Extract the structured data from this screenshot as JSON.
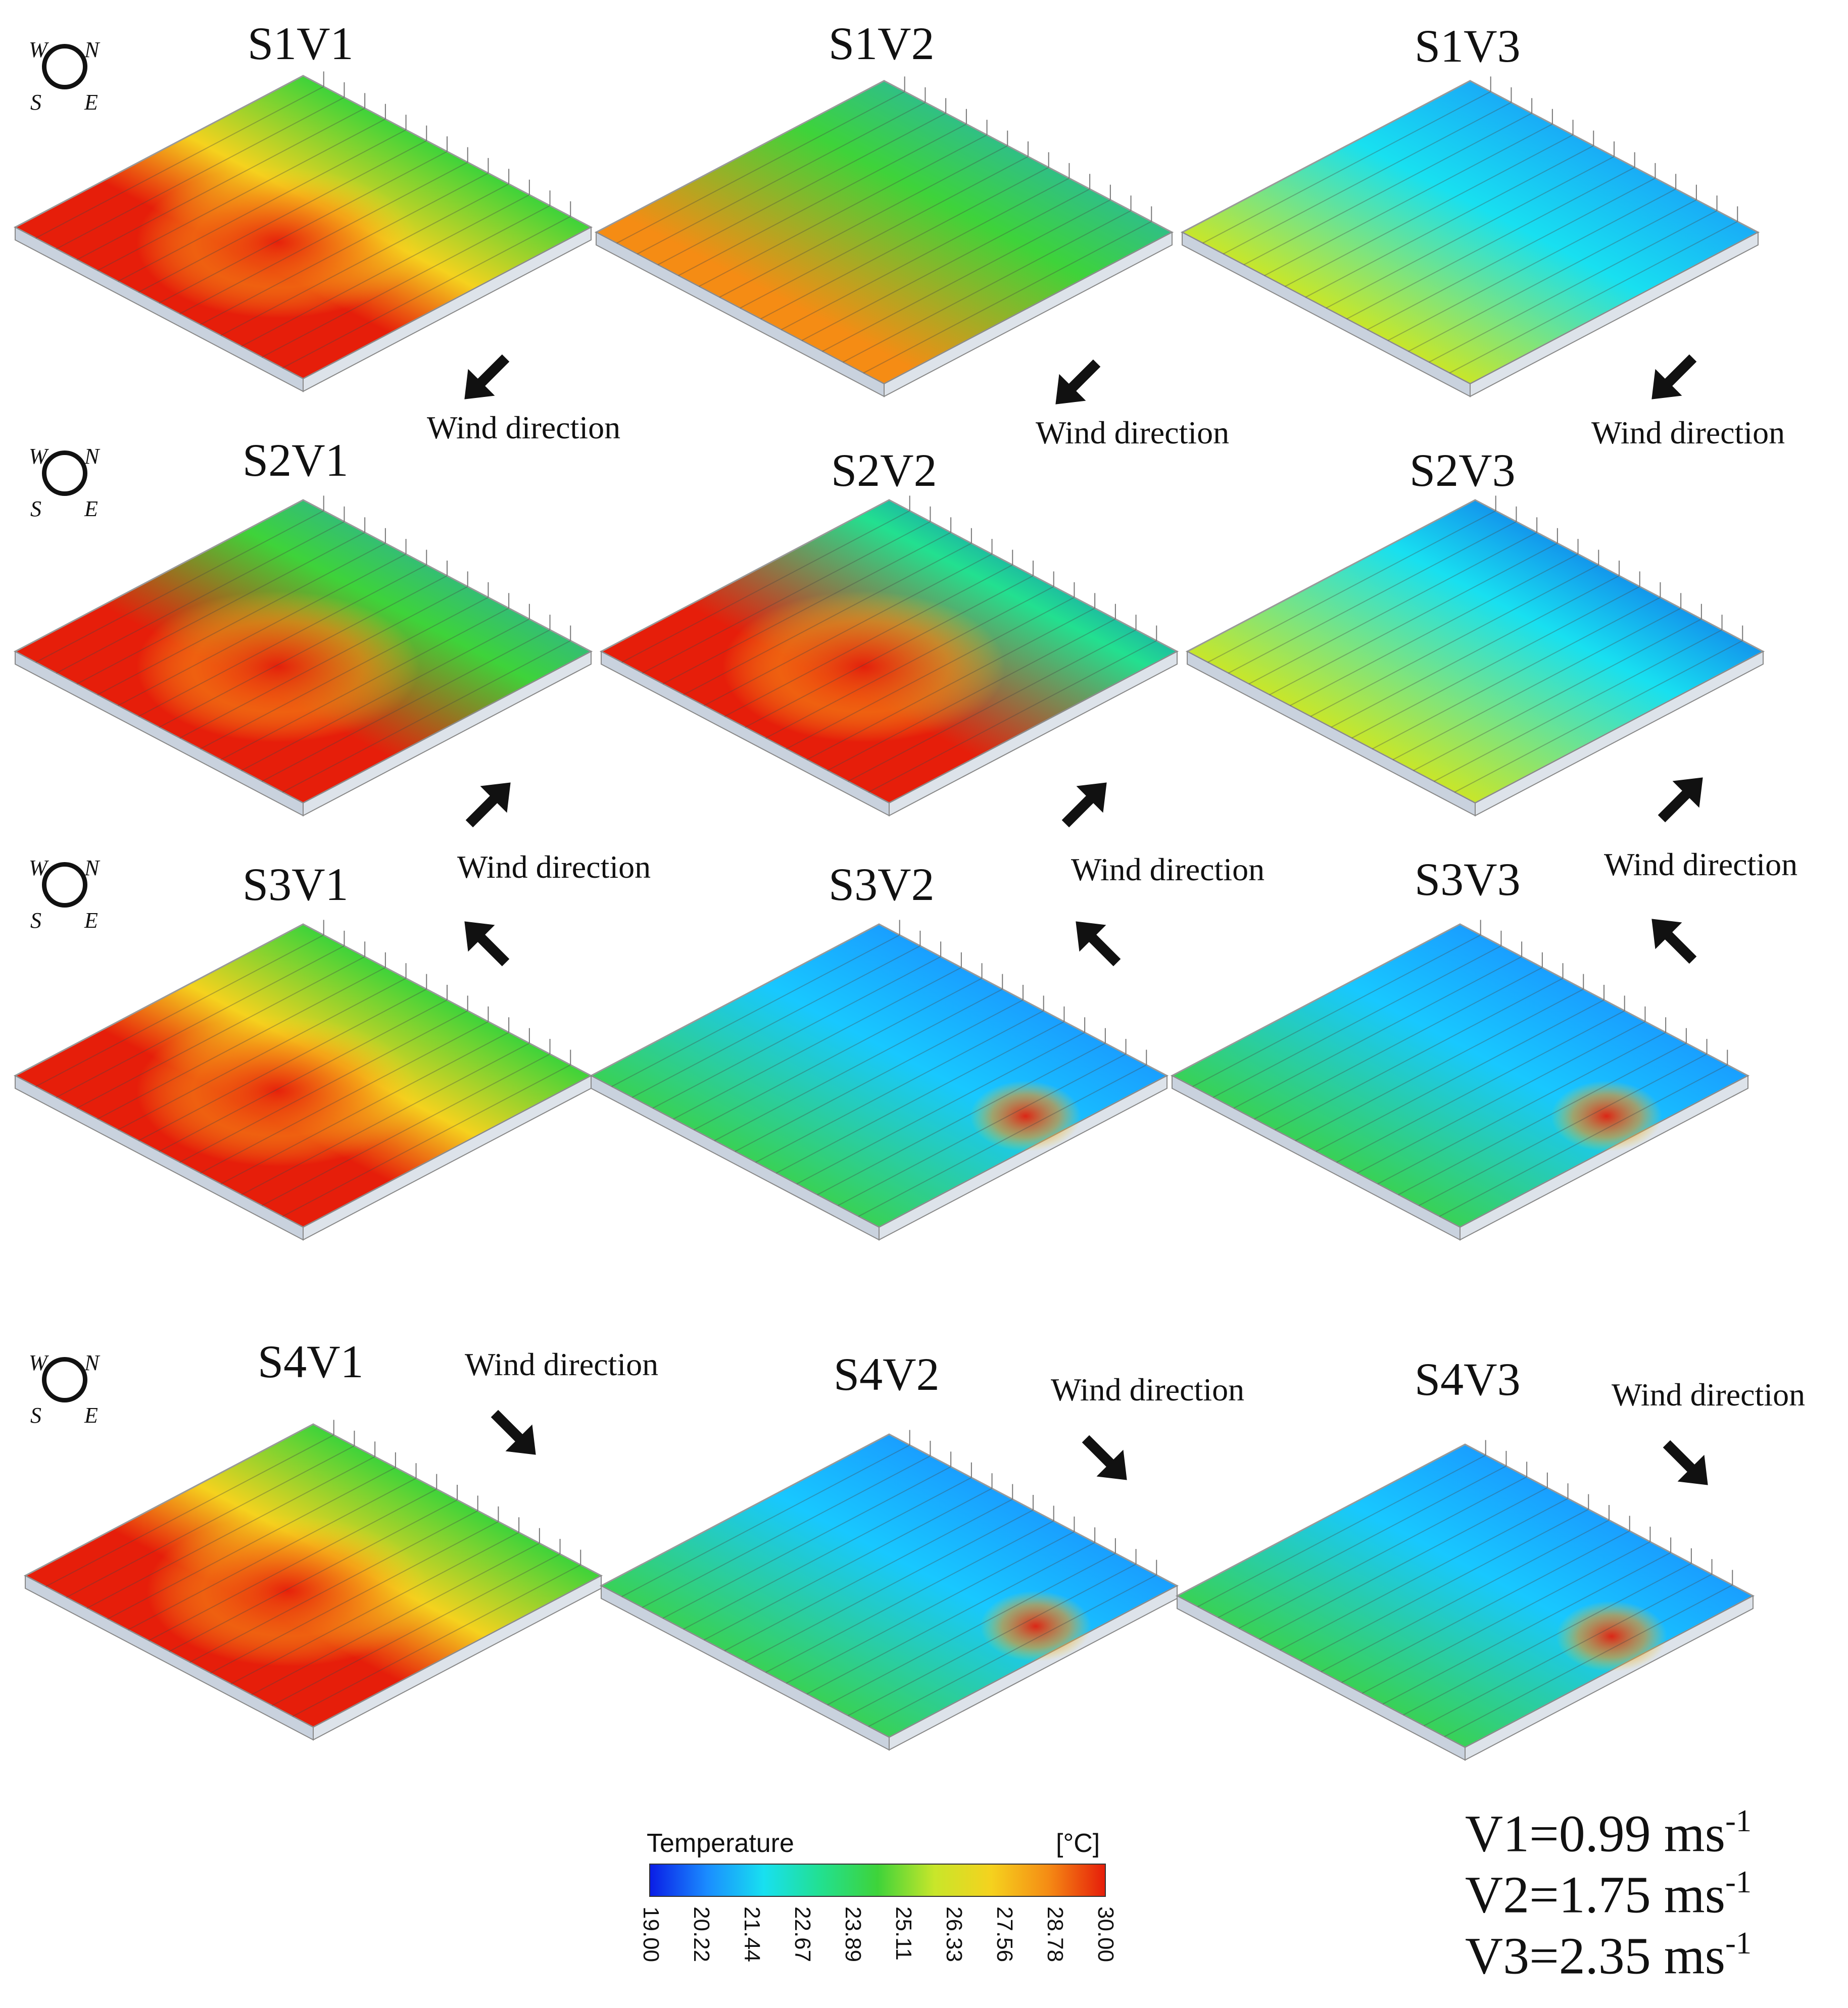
{
  "panels": [
    {
      "title": "S1V1",
      "wind": "Wind direction",
      "arrow_dir": "nw",
      "pattern": "hot-center"
    },
    {
      "title": "S1V2",
      "wind": "Wind direction",
      "arrow_dir": "nw",
      "pattern": "warm-west"
    },
    {
      "title": "S1V3",
      "wind": "Wind direction",
      "arrow_dir": "nw",
      "pattern": "cool-east"
    },
    {
      "title": "S2V1",
      "wind": "Wind direction",
      "arrow_dir": "se",
      "pattern": "hot-south"
    },
    {
      "title": "S2V2",
      "wind": "Wind direction",
      "arrow_dir": "se",
      "pattern": "streaks-hot"
    },
    {
      "title": "S2V3",
      "wind": "Wind direction",
      "arrow_dir": "se",
      "pattern": "streaks"
    },
    {
      "title": "S3V1",
      "wind": "Wind direction",
      "arrow_dir": "ne",
      "pattern": "hot-center"
    },
    {
      "title": "S3V2",
      "wind": "Wind direction",
      "arrow_dir": "ne",
      "pattern": "cool-spot"
    },
    {
      "title": "S3V3",
      "wind": "Wind direction",
      "arrow_dir": "ne",
      "pattern": "cool-spot"
    },
    {
      "title": "S4V1",
      "wind": "Wind direction",
      "arrow_dir": "sw",
      "pattern": "hot-center"
    },
    {
      "title": "S4V2",
      "wind": "Wind direction",
      "arrow_dir": "sw",
      "pattern": "cool-spot"
    },
    {
      "title": "S4V3",
      "wind": "Wind direction",
      "arrow_dir": "sw",
      "pattern": "cool-spot"
    }
  ],
  "compass": {
    "n": "N",
    "e": "E",
    "s": "S",
    "w": "W"
  },
  "colorbar": {
    "title": "Temperature",
    "unit": "[°C]",
    "ticks": [
      "19.00",
      "20.22",
      "21.44",
      "22.67",
      "23.89",
      "25.11",
      "26.33",
      "27.56",
      "28.78",
      "30.00"
    ],
    "colors": [
      "#0a1ee6",
      "#1a8cff",
      "#18e0f0",
      "#22e090",
      "#3ed33a",
      "#c8e62a",
      "#f5d21e",
      "#f58c14",
      "#e61e0a"
    ]
  },
  "velocities": [
    {
      "label": "V1=0.99 ms",
      "exp": "-1"
    },
    {
      "label": "V2=1.75 ms",
      "exp": "-1"
    },
    {
      "label": "V3=2.35 ms",
      "exp": "-1"
    }
  ]
}
